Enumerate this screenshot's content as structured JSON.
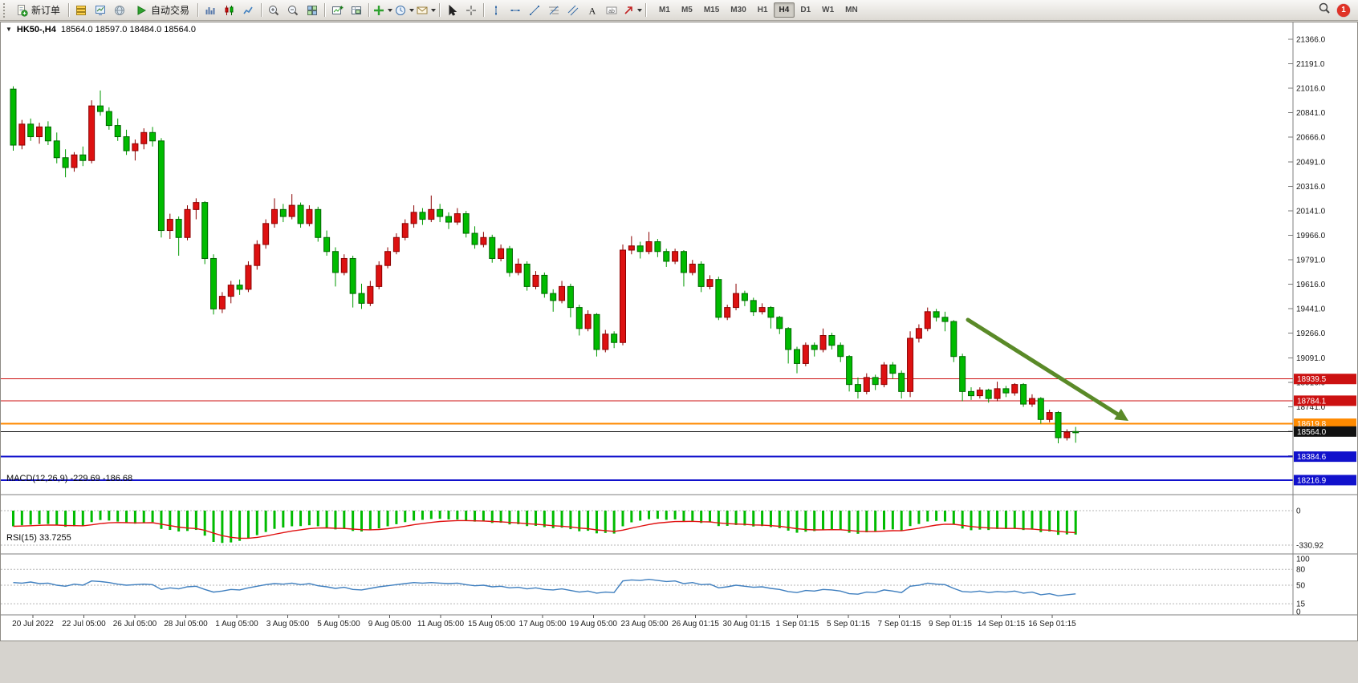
{
  "toolbar": {
    "groups": [
      {
        "items": [
          {
            "name": "new-order",
            "icon": "doc-plus",
            "label": "新订单"
          }
        ]
      },
      {
        "items": [
          {
            "name": "market-watch",
            "icon": "layers"
          },
          {
            "name": "data-window",
            "icon": "monitor"
          },
          {
            "name": "navigator",
            "icon": "globe"
          },
          {
            "name": "auto-trading",
            "icon": "play",
            "label": "自动交易"
          }
        ]
      },
      {
        "items": [
          {
            "name": "bar-chart-mode",
            "icon": "bars"
          },
          {
            "name": "candlestick-mode",
            "icon": "candles"
          },
          {
            "name": "line-chart-mode",
            "icon": "linechart"
          }
        ]
      },
      {
        "items": [
          {
            "name": "zoom-in",
            "icon": "zoom-in"
          },
          {
            "name": "zoom-out",
            "icon": "zoom-out"
          },
          {
            "name": "tile-windows",
            "icon": "grid"
          }
        ]
      },
      {
        "items": [
          {
            "name": "new-chart",
            "icon": "chart-add"
          },
          {
            "name": "chart-profiles",
            "icon": "chart-flag"
          }
        ]
      },
      {
        "items": [
          {
            "name": "indicators",
            "icon": "plus-green",
            "dropdown": true
          },
          {
            "name": "periods",
            "icon": "clock",
            "dropdown": true
          },
          {
            "name": "templates",
            "icon": "mail",
            "dropdown": true
          }
        ]
      },
      {
        "items": [
          {
            "name": "cursor-tool",
            "icon": "cursor"
          },
          {
            "name": "crosshair-tool",
            "icon": "crosshair"
          }
        ]
      },
      {
        "items": [
          {
            "name": "vertical-line-tool",
            "icon": "vline"
          },
          {
            "name": "horizontal-line-tool",
            "icon": "hline"
          },
          {
            "name": "trendline-tool",
            "icon": "tline"
          },
          {
            "name": "fibonacci-tool",
            "icon": "fibo"
          },
          {
            "name": "channel-tool",
            "icon": "channel"
          },
          {
            "name": "text-tool",
            "icon": "letter-a"
          },
          {
            "name": "text-label-tool",
            "icon": "label"
          },
          {
            "name": "arrows-tool",
            "icon": "arrow-shape",
            "dropdown": true
          }
        ]
      }
    ],
    "timeframes": [
      "M1",
      "M5",
      "M15",
      "M30",
      "H1",
      "H4",
      "D1",
      "W1",
      "MN"
    ],
    "active_timeframe": "H4",
    "badge": "1"
  },
  "chart": {
    "symbol_title": "HK50-,H4",
    "ohlc_text": "18564.0 18597.0 18484.0 18564.0"
  },
  "chart_data": {
    "type": "candlestick",
    "symbol": "HK50-",
    "timeframe": "H4",
    "colors": {
      "bull": "#dd1111",
      "bull_border": "#8b0000",
      "bear": "#00bb00",
      "bear_border": "#006600",
      "arrow": "#5a8a28",
      "macd_hist": "#00bb00",
      "macd_signal": "#e01010",
      "rsi_line": "#3f7fbf",
      "level_red": "#cc1111",
      "level_orange": "#ff8a00",
      "level_blue": "#1111cc",
      "level_black": "#111111"
    },
    "y_axis": {
      "top_price": 21366,
      "step": 175,
      "labels": [
        "21366.0",
        "21191.0",
        "21016.0",
        "20841.0",
        "20666.0",
        "20491.0",
        "20316.0",
        "20141.0",
        "19966.0",
        "19791.0",
        "19616.0",
        "19441.0",
        "19266.0",
        "19091.0",
        "18916.0",
        "18741.0",
        "18566.0",
        "18391.0",
        "18216.0"
      ]
    },
    "levels": [
      {
        "label": "18939.5",
        "price": 18939.5,
        "color": "#cc1111",
        "width": 1
      },
      {
        "label": "18784.1",
        "price": 18784.1,
        "color": "#cc1111",
        "width": 1
      },
      {
        "label": "18619.8",
        "price": 18619.8,
        "color": "#ff8a00",
        "width": 2
      },
      {
        "label": "18564.0",
        "price": 18564.0,
        "color": "#111111",
        "width": 1,
        "kind": "current-price"
      },
      {
        "label": "18384.6",
        "price": 18384.6,
        "color": "#1111cc",
        "width": 2
      },
      {
        "label": "18216.9",
        "price": 18216.9,
        "color": "#1111cc",
        "width": 2
      }
    ],
    "x_labels": [
      "20 Jul 2022",
      "22 Jul 05:00",
      "26 Jul 05:00",
      "28 Jul 05:00",
      "1 Aug 05:00",
      "3 Aug 05:00",
      "5 Aug 05:00",
      "9 Aug 05:00",
      "11 Aug 05:00",
      "15 Aug 05:00",
      "17 Aug 05:00",
      "19 Aug 05:00",
      "23 Aug 05:00",
      "26 Aug 01:15",
      "30 Aug 01:15",
      "1 Sep 01:15",
      "5 Sep 01:15",
      "7 Sep 01:15",
      "9 Sep 01:15",
      "14 Sep 01:15",
      "16 Sep 01:15"
    ],
    "candles": [
      [
        21010,
        21030,
        20570,
        20610
      ],
      [
        20610,
        20790,
        20580,
        20760
      ],
      [
        20760,
        20800,
        20640,
        20670
      ],
      [
        20670,
        20770,
        20620,
        20740
      ],
      [
        20740,
        20780,
        20610,
        20640
      ],
      [
        20640,
        20700,
        20480,
        20520
      ],
      [
        20520,
        20580,
        20380,
        20450
      ],
      [
        20450,
        20560,
        20420,
        20540
      ],
      [
        20540,
        20600,
        20460,
        20500
      ],
      [
        20500,
        20930,
        20480,
        20890
      ],
      [
        20890,
        21000,
        20820,
        20850
      ],
      [
        20850,
        20880,
        20720,
        20750
      ],
      [
        20750,
        20800,
        20640,
        20670
      ],
      [
        20670,
        20720,
        20540,
        20570
      ],
      [
        20570,
        20650,
        20500,
        20620
      ],
      [
        20620,
        20730,
        20580,
        20700
      ],
      [
        20700,
        20740,
        20600,
        20640
      ],
      [
        20640,
        20660,
        19950,
        20000
      ],
      [
        20000,
        20120,
        19940,
        20080
      ],
      [
        20080,
        20100,
        19820,
        19950
      ],
      [
        19950,
        20180,
        19930,
        20150
      ],
      [
        20150,
        20230,
        20080,
        20200
      ],
      [
        20200,
        20210,
        19760,
        19800
      ],
      [
        19800,
        19830,
        19400,
        19440
      ],
      [
        19440,
        19560,
        19410,
        19530
      ],
      [
        19530,
        19640,
        19480,
        19610
      ],
      [
        19610,
        19650,
        19540,
        19580
      ],
      [
        19580,
        19780,
        19560,
        19750
      ],
      [
        19750,
        19930,
        19720,
        19900
      ],
      [
        19900,
        20080,
        19870,
        20050
      ],
      [
        20050,
        20230,
        20020,
        20150
      ],
      [
        20150,
        20190,
        20060,
        20100
      ],
      [
        20100,
        20260,
        20080,
        20180
      ],
      [
        20180,
        20200,
        20020,
        20050
      ],
      [
        20050,
        20180,
        20030,
        20150
      ],
      [
        20150,
        20170,
        19920,
        19950
      ],
      [
        19950,
        20000,
        19820,
        19850
      ],
      [
        19850,
        19880,
        19600,
        19700
      ],
      [
        19700,
        19830,
        19680,
        19800
      ],
      [
        19800,
        19820,
        19450,
        19550
      ],
      [
        19550,
        19620,
        19440,
        19480
      ],
      [
        19480,
        19640,
        19460,
        19600
      ],
      [
        19600,
        19780,
        19580,
        19750
      ],
      [
        19750,
        19880,
        19730,
        19850
      ],
      [
        19850,
        19980,
        19830,
        19950
      ],
      [
        19950,
        20080,
        19930,
        20050
      ],
      [
        20050,
        20180,
        20020,
        20130
      ],
      [
        20130,
        20160,
        20040,
        20080
      ],
      [
        20080,
        20250,
        20060,
        20150
      ],
      [
        20150,
        20190,
        20060,
        20100
      ],
      [
        20100,
        20130,
        20010,
        20060
      ],
      [
        20060,
        20160,
        20040,
        20120
      ],
      [
        20120,
        20140,
        19950,
        19980
      ],
      [
        19980,
        20030,
        19870,
        19900
      ],
      [
        19900,
        19990,
        19880,
        19950
      ],
      [
        19950,
        19970,
        19770,
        19800
      ],
      [
        19800,
        19900,
        19780,
        19870
      ],
      [
        19870,
        19890,
        19670,
        19700
      ],
      [
        19700,
        19800,
        19680,
        19760
      ],
      [
        19760,
        19780,
        19570,
        19600
      ],
      [
        19600,
        19710,
        19580,
        19680
      ],
      [
        19680,
        19700,
        19520,
        19550
      ],
      [
        19550,
        19580,
        19420,
        19500
      ],
      [
        19500,
        19640,
        19480,
        19600
      ],
      [
        19600,
        19620,
        19380,
        19450
      ],
      [
        19450,
        19470,
        19250,
        19300
      ],
      [
        19300,
        19430,
        19280,
        19400
      ],
      [
        19400,
        19410,
        19100,
        19150
      ],
      [
        19150,
        19290,
        19130,
        19260
      ],
      [
        19260,
        19280,
        19160,
        19200
      ],
      [
        19200,
        19900,
        19180,
        19860
      ],
      [
        19860,
        19960,
        19830,
        19890
      ],
      [
        19890,
        19920,
        19800,
        19850
      ],
      [
        19850,
        19990,
        19830,
        19920
      ],
      [
        19920,
        19940,
        19810,
        19850
      ],
      [
        19850,
        19870,
        19740,
        19780
      ],
      [
        19780,
        19870,
        19760,
        19850
      ],
      [
        19850,
        19860,
        19600,
        19700
      ],
      [
        19700,
        19790,
        19680,
        19760
      ],
      [
        19760,
        19780,
        19560,
        19600
      ],
      [
        19600,
        19680,
        19580,
        19650
      ],
      [
        19650,
        19670,
        19360,
        19380
      ],
      [
        19380,
        19470,
        19360,
        19450
      ],
      [
        19450,
        19620,
        19430,
        19550
      ],
      [
        19550,
        19570,
        19460,
        19500
      ],
      [
        19500,
        19520,
        19390,
        19420
      ],
      [
        19420,
        19480,
        19400,
        19450
      ],
      [
        19450,
        19460,
        19300,
        19380
      ],
      [
        19380,
        19390,
        19260,
        19300
      ],
      [
        19300,
        19310,
        19050,
        19150
      ],
      [
        19150,
        19170,
        18980,
        19050
      ],
      [
        19050,
        19200,
        19030,
        19180
      ],
      [
        19180,
        19200,
        19100,
        19150
      ],
      [
        19150,
        19300,
        19130,
        19250
      ],
      [
        19250,
        19270,
        19150,
        19180
      ],
      [
        19180,
        19200,
        19060,
        19100
      ],
      [
        19100,
        19110,
        18850,
        18900
      ],
      [
        18900,
        18950,
        18800,
        18850
      ],
      [
        18850,
        18980,
        18830,
        18950
      ],
      [
        18950,
        18970,
        18860,
        18900
      ],
      [
        18900,
        19060,
        18880,
        19040
      ],
      [
        19040,
        19060,
        18940,
        18980
      ],
      [
        18980,
        19000,
        18800,
        18850
      ],
      [
        18850,
        19280,
        18810,
        19230
      ],
      [
        19230,
        19330,
        19200,
        19300
      ],
      [
        19300,
        19450,
        19280,
        19420
      ],
      [
        19420,
        19440,
        19350,
        19380
      ],
      [
        19380,
        19420,
        19280,
        19350
      ],
      [
        19350,
        19360,
        19060,
        19100
      ],
      [
        19100,
        19120,
        18780,
        18850
      ],
      [
        18850,
        18880,
        18790,
        18820
      ],
      [
        18820,
        18880,
        18800,
        18860
      ],
      [
        18860,
        18870,
        18770,
        18800
      ],
      [
        18800,
        18920,
        18780,
        18870
      ],
      [
        18870,
        18890,
        18810,
        18840
      ],
      [
        18840,
        18910,
        18820,
        18900
      ],
      [
        18900,
        18910,
        18740,
        18760
      ],
      [
        18760,
        18830,
        18740,
        18800
      ],
      [
        18800,
        18810,
        18620,
        18650
      ],
      [
        18650,
        18720,
        18630,
        18700
      ],
      [
        18700,
        18710,
        18480,
        18520
      ],
      [
        18520,
        18580,
        18500,
        18560
      ],
      [
        18564,
        18597,
        18484,
        18564
      ]
    ],
    "macd": {
      "name": "MACD(12,26,9)",
      "values": "-229.69 -186.68",
      "axis_labels": [
        "0",
        "-330.92"
      ],
      "min_level": -330.92,
      "histogram": [
        -150,
        -140,
        -135,
        -130,
        -128,
        -140,
        -155,
        -150,
        -148,
        -110,
        -90,
        -95,
        -105,
        -118,
        -125,
        -115,
        -110,
        -175,
        -185,
        -200,
        -195,
        -185,
        -240,
        -300,
        -310,
        -305,
        -290,
        -265,
        -235,
        -205,
        -175,
        -162,
        -150,
        -148,
        -140,
        -150,
        -162,
        -180,
        -175,
        -195,
        -200,
        -188,
        -170,
        -150,
        -130,
        -110,
        -95,
        -88,
        -80,
        -78,
        -84,
        -86,
        -95,
        -105,
        -104,
        -118,
        -116,
        -132,
        -130,
        -148,
        -146,
        -158,
        -168,
        -163,
        -178,
        -198,
        -193,
        -218,
        -214,
        -220,
        -150,
        -112,
        -96,
        -82,
        -78,
        -88,
        -84,
        -102,
        -98,
        -118,
        -112,
        -148,
        -146,
        -138,
        -142,
        -152,
        -148,
        -158,
        -168,
        -192,
        -212,
        -202,
        -196,
        -182,
        -178,
        -184,
        -212,
        -222,
        -208,
        -202,
        -182,
        -180,
        -196,
        -148,
        -128,
        -104,
        -98,
        -104,
        -132,
        -172,
        -188,
        -182,
        -186,
        -176,
        -176,
        -170,
        -186,
        -182,
        -206,
        -200,
        -232,
        -228,
        -229.69
      ]
    },
    "rsi": {
      "name": "RSI(15)",
      "value": "33.7255",
      "levels": [
        80,
        50,
        15
      ],
      "axis_labels": [
        "100",
        "80",
        "50",
        "15",
        "0"
      ],
      "values": [
        55,
        54,
        56,
        53,
        54,
        50,
        48,
        52,
        50,
        58,
        57,
        55,
        52,
        50,
        51,
        52,
        51,
        42,
        45,
        43,
        47,
        48,
        42,
        37,
        39,
        42,
        41,
        45,
        48,
        51,
        53,
        52,
        54,
        51,
        53,
        49,
        47,
        44,
        46,
        42,
        41,
        44,
        47,
        49,
        51,
        53,
        55,
        54,
        55,
        54,
        53,
        54,
        51,
        49,
        50,
        47,
        48,
        45,
        46,
        43,
        45,
        42,
        41,
        43,
        40,
        37,
        39,
        35,
        37,
        36,
        58,
        60,
        59,
        61,
        59,
        57,
        58,
        53,
        55,
        51,
        52,
        45,
        47,
        50,
        48,
        46,
        47,
        44,
        42,
        38,
        36,
        40,
        39,
        42,
        41,
        39,
        34,
        33,
        37,
        36,
        41,
        39,
        36,
        48,
        50,
        54,
        52,
        51,
        44,
        38,
        37,
        39,
        36,
        38,
        37,
        39,
        35,
        37,
        32,
        34,
        30,
        32,
        33.7
      ]
    }
  }
}
